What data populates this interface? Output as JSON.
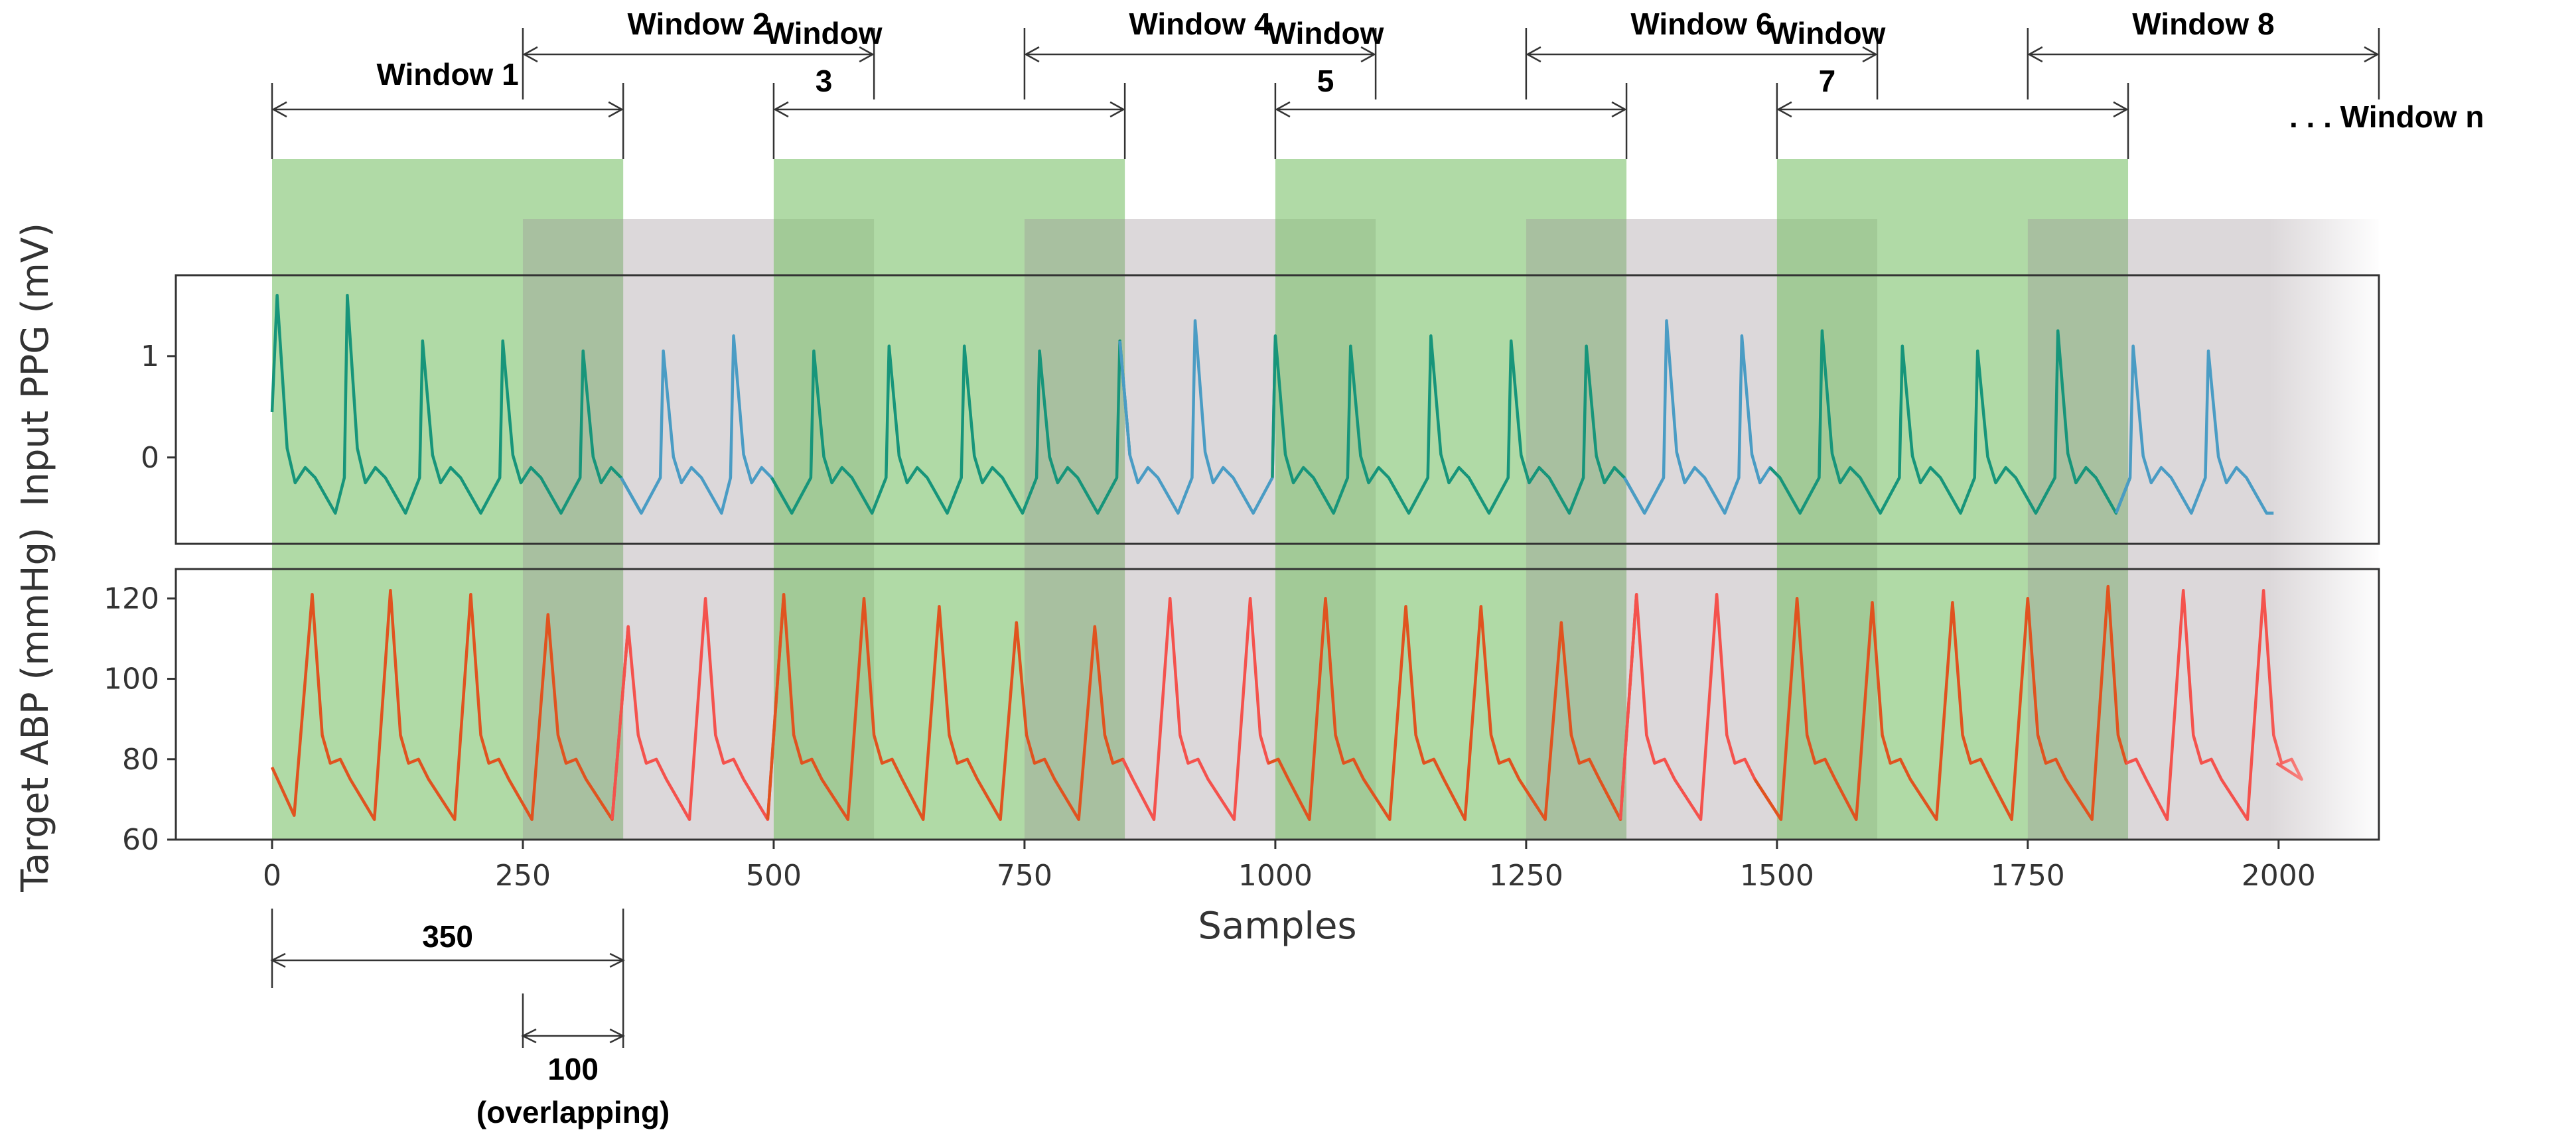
{
  "chart_data": {
    "type": "line",
    "description_x": "Samples",
    "xlabel": "Samples",
    "xlim": [
      0,
      2100
    ],
    "x_ticks": [
      0,
      250,
      500,
      750,
      1000,
      1250,
      1500,
      1750,
      2000
    ],
    "window_length": 350,
    "window_step": 250,
    "overlap": 100,
    "windows": [
      {
        "label": "Window 1",
        "start": 0,
        "end": 350,
        "color": "green"
      },
      {
        "label": "Window 2",
        "start": 250,
        "end": 600,
        "color": "gray"
      },
      {
        "label": "Window 3",
        "start": 500,
        "end": 850,
        "color": "green",
        "label_lines": [
          "Window",
          "3"
        ]
      },
      {
        "label": "Window 4",
        "start": 750,
        "end": 1100,
        "color": "gray"
      },
      {
        "label": "Window 5",
        "start": 1000,
        "end": 1350,
        "color": "green",
        "label_lines": [
          "Window",
          "5"
        ]
      },
      {
        "label": "Window 6",
        "start": 1250,
        "end": 1600,
        "color": "gray"
      },
      {
        "label": "Window 7",
        "start": 1500,
        "end": 1850,
        "color": "green",
        "label_lines": [
          "Window",
          "7"
        ]
      },
      {
        "label": "Window 8",
        "start": 1750,
        "end": 2100,
        "color": "gray"
      }
    ],
    "window_n_label": ". . .  Window n",
    "annotations": {
      "length_label": "350",
      "overlap_label": "100",
      "overlap_note": "(overlapping)"
    },
    "panels": [
      {
        "name": "ppg",
        "ylabel": "Input PPG (mV)",
        "ylim": [
          -0.8,
          1.7
        ],
        "y_ticks": [
          0,
          1
        ],
        "series": {
          "name": "PPG",
          "color_in_window": "#17957a",
          "color_outside": "#4a9cc4",
          "peaks": [
            {
              "x": 5,
              "v": 1.6
            },
            {
              "x": 75,
              "v": 1.6
            },
            {
              "x": 150,
              "v": 1.15
            },
            {
              "x": 230,
              "v": 1.15
            },
            {
              "x": 310,
              "v": 1.05
            },
            {
              "x": 390,
              "v": 1.05
            },
            {
              "x": 460,
              "v": 1.2
            },
            {
              "x": 540,
              "v": 1.05
            },
            {
              "x": 615,
              "v": 1.1
            },
            {
              "x": 690,
              "v": 1.1
            },
            {
              "x": 765,
              "v": 1.05
            },
            {
              "x": 845,
              "v": 1.15
            },
            {
              "x": 920,
              "v": 1.35
            },
            {
              "x": 1000,
              "v": 1.2
            },
            {
              "x": 1075,
              "v": 1.1
            },
            {
              "x": 1155,
              "v": 1.2
            },
            {
              "x": 1235,
              "v": 1.15
            },
            {
              "x": 1310,
              "v": 1.1
            },
            {
              "x": 1390,
              "v": 1.35
            },
            {
              "x": 1465,
              "v": 1.2
            },
            {
              "x": 1545,
              "v": 1.25
            },
            {
              "x": 1625,
              "v": 1.1
            },
            {
              "x": 1700,
              "v": 1.05
            },
            {
              "x": 1780,
              "v": 1.25
            },
            {
              "x": 1855,
              "v": 1.1
            },
            {
              "x": 1930,
              "v": 1.05
            }
          ],
          "end_x": 1995,
          "trough_value": -0.55
        }
      },
      {
        "name": "abp",
        "ylabel": "Target ABP (mmHg)",
        "ylim": [
          60,
          125
        ],
        "y_ticks": [
          60,
          80,
          100,
          120
        ],
        "series": {
          "name": "ABP",
          "color_in_window": "#e0531f",
          "color_outside": "#f4524d",
          "peaks": [
            {
              "x": 40,
              "v": 121
            },
            {
              "x": 118,
              "v": 122
            },
            {
              "x": 198,
              "v": 121
            },
            {
              "x": 275,
              "v": 116
            },
            {
              "x": 355,
              "v": 113
            },
            {
              "x": 432,
              "v": 120
            },
            {
              "x": 510,
              "v": 121
            },
            {
              "x": 590,
              "v": 120
            },
            {
              "x": 665,
              "v": 118
            },
            {
              "x": 742,
              "v": 114
            },
            {
              "x": 820,
              "v": 113
            },
            {
              "x": 895,
              "v": 120
            },
            {
              "x": 975,
              "v": 120
            },
            {
              "x": 1050,
              "v": 120
            },
            {
              "x": 1130,
              "v": 118
            },
            {
              "x": 1205,
              "v": 118
            },
            {
              "x": 1285,
              "v": 114
            },
            {
              "x": 1360,
              "v": 121
            },
            {
              "x": 1440,
              "v": 121
            },
            {
              "x": 1520,
              "v": 120
            },
            {
              "x": 1595,
              "v": 119
            },
            {
              "x": 1675,
              "v": 119
            },
            {
              "x": 1750,
              "v": 120
            },
            {
              "x": 1830,
              "v": 123
            },
            {
              "x": 1905,
              "v": 122
            },
            {
              "x": 1985,
              "v": 122
            }
          ],
          "start_value": 78,
          "end_x": 1998,
          "end_value": 79
        }
      }
    ]
  }
}
